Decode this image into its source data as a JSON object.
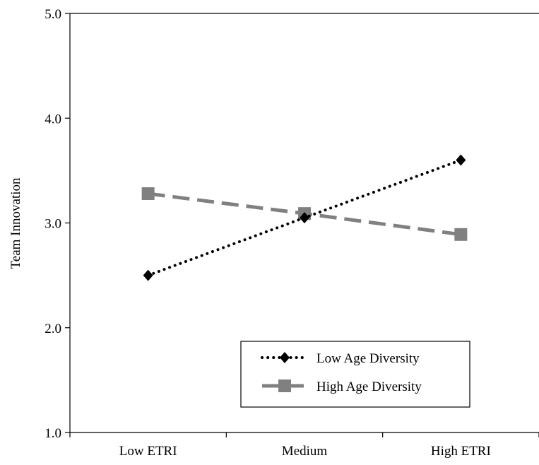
{
  "chart_data": {
    "type": "line",
    "categories": [
      "Low ETRI",
      "Medium",
      "High ETRI"
    ],
    "series": [
      {
        "name": "Low Age Diversity",
        "values": [
          2.5,
          3.05,
          3.6
        ],
        "color": "#000000",
        "line_style": "dotted",
        "marker": "diamond"
      },
      {
        "name": "High Age Diversity",
        "values": [
          3.28,
          3.09,
          2.89
        ],
        "color": "#808080",
        "line_style": "dashed",
        "marker": "square"
      }
    ],
    "title": "",
    "xlabel": "",
    "ylabel": "Team Innovation",
    "ylim": [
      1.0,
      5.0
    ],
    "yticks": [
      "1.0",
      "2.0",
      "3.0",
      "4.0",
      "5.0"
    ],
    "grid": false,
    "legend_position": "bottom-right"
  }
}
